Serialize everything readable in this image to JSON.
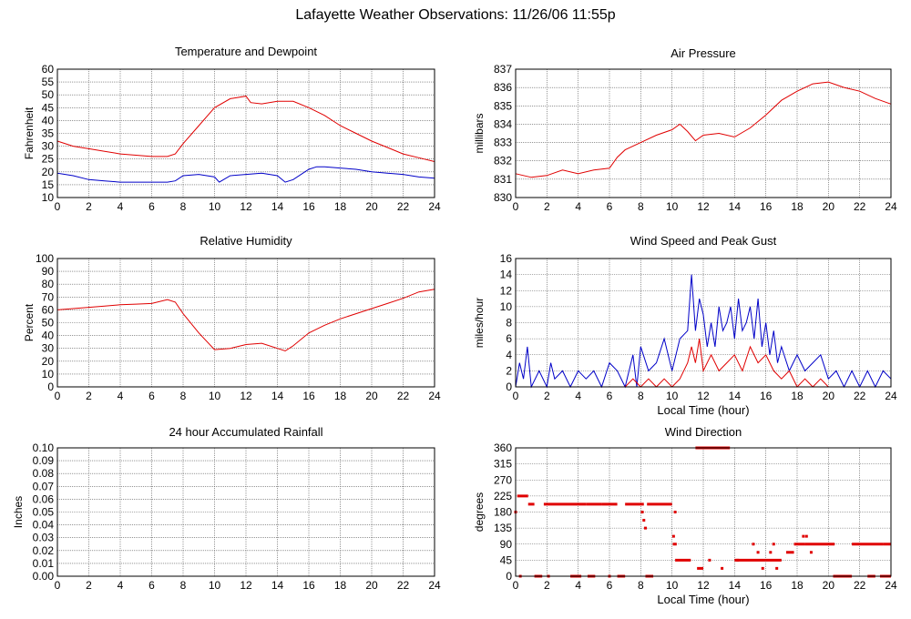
{
  "page_title": "Lafayette Weather Observations: 11/26/06 11:55p",
  "colors": {
    "red": "#e00000",
    "blue": "#0000c8",
    "grid": "#555555"
  },
  "chart_data": [
    {
      "id": "temp",
      "type": "line",
      "title": "Temperature and Dewpoint",
      "xlabel": "",
      "ylabel": "Fahrenheit",
      "xlim": [
        0,
        24
      ],
      "ylim": [
        10,
        60
      ],
      "xticks": [
        0,
        2,
        4,
        6,
        8,
        10,
        12,
        14,
        16,
        18,
        20,
        22,
        24
      ],
      "yticks": [
        10,
        15,
        20,
        25,
        30,
        35,
        40,
        45,
        50,
        55,
        60
      ],
      "grid": true,
      "series": [
        {
          "color": "#e00000",
          "x": [
            0,
            1,
            2,
            3,
            4,
            5,
            6,
            7,
            7.5,
            8,
            9,
            10,
            11,
            12,
            12.3,
            13,
            14,
            15,
            16,
            17,
            18,
            19,
            20,
            21,
            22,
            23,
            24
          ],
          "y": [
            32,
            30,
            29,
            28,
            27,
            26.5,
            26,
            26,
            27,
            31,
            38,
            45,
            48.5,
            49.5,
            47,
            46.5,
            47.5,
            47.5,
            45,
            42,
            38,
            35,
            32,
            29.5,
            27,
            25.5,
            24
          ]
        },
        {
          "color": "#0000c8",
          "x": [
            0,
            1,
            2,
            3,
            4,
            5,
            6,
            7,
            7.5,
            8,
            9,
            10,
            10.3,
            11,
            12,
            13,
            14,
            14.5,
            15,
            16,
            16.5,
            17,
            18,
            19,
            20,
            21,
            22,
            23,
            24
          ],
          "y": [
            19.5,
            18.5,
            17,
            16.5,
            16,
            16,
            16,
            16,
            16.5,
            18.5,
            19,
            18,
            16,
            18.5,
            19,
            19.5,
            18.5,
            16,
            17,
            21,
            22,
            22,
            21.5,
            21,
            20,
            19.5,
            19,
            18,
            17.5
          ]
        }
      ]
    },
    {
      "id": "pressure",
      "type": "line",
      "title": "Air Pressure",
      "xlabel": "",
      "ylabel": "millibars",
      "xlim": [
        0,
        24
      ],
      "ylim": [
        830,
        837
      ],
      "xticks": [
        0,
        2,
        4,
        6,
        8,
        10,
        12,
        14,
        16,
        18,
        20,
        22,
        24
      ],
      "yticks": [
        830,
        831,
        832,
        833,
        834,
        835,
        836,
        837
      ],
      "grid": true,
      "series": [
        {
          "color": "#e00000",
          "x": [
            0,
            1,
            2,
            3,
            4,
            5,
            6,
            6.5,
            7,
            8,
            9,
            10,
            10.5,
            11,
            11.5,
            12,
            13,
            14,
            15,
            16,
            17,
            18,
            19,
            20,
            21,
            22,
            23,
            24
          ],
          "y": [
            831.3,
            831.1,
            831.2,
            831.5,
            831.3,
            831.5,
            831.6,
            832.2,
            832.6,
            833.0,
            833.4,
            833.7,
            834.0,
            833.6,
            833.1,
            833.4,
            833.5,
            833.3,
            833.8,
            834.5,
            835.3,
            835.8,
            836.2,
            836.3,
            836.0,
            835.8,
            835.4,
            835.1
          ]
        }
      ]
    },
    {
      "id": "humidity",
      "type": "line",
      "title": "Relative Humidity",
      "xlabel": "",
      "ylabel": "Percent",
      "xlim": [
        0,
        24
      ],
      "ylim": [
        0,
        100
      ],
      "xticks": [
        0,
        2,
        4,
        6,
        8,
        10,
        12,
        14,
        16,
        18,
        20,
        22,
        24
      ],
      "yticks": [
        0,
        10,
        20,
        30,
        40,
        50,
        60,
        70,
        80,
        90,
        100
      ],
      "grid": true,
      "series": [
        {
          "color": "#e00000",
          "x": [
            0,
            1,
            2,
            3,
            4,
            5,
            6,
            7,
            7.5,
            8,
            9,
            10,
            11,
            12,
            13,
            14,
            14.5,
            15,
            16,
            17,
            18,
            19,
            20,
            21,
            22,
            23,
            24
          ],
          "y": [
            60,
            61,
            62,
            63,
            64,
            64.5,
            65,
            68,
            66,
            57,
            42,
            29,
            30,
            33,
            34,
            30,
            28,
            32,
            42,
            48,
            53,
            57,
            61,
            65,
            69,
            74,
            76
          ]
        }
      ]
    },
    {
      "id": "wind",
      "type": "line",
      "title": "Wind Speed and Peak Gust",
      "xlabel": "Local Time (hour)",
      "ylabel": "miles/hour",
      "xlim": [
        0,
        24
      ],
      "ylim": [
        0,
        16
      ],
      "xticks": [
        0,
        2,
        4,
        6,
        8,
        10,
        12,
        14,
        16,
        18,
        20,
        22,
        24
      ],
      "yticks": [
        0,
        2,
        4,
        6,
        8,
        10,
        12,
        14,
        16
      ],
      "grid": true,
      "series": [
        {
          "color": "#0000c8",
          "x": [
            0,
            0.25,
            0.5,
            0.75,
            1,
            1.5,
            2,
            2.25,
            2.5,
            3,
            3.5,
            4,
            4.5,
            5,
            5.5,
            6,
            6.5,
            7,
            7.5,
            7.75,
            8,
            8.5,
            9,
            9.5,
            10,
            10.5,
            11,
            11.25,
            11.5,
            11.75,
            12,
            12.25,
            12.5,
            12.75,
            13,
            13.25,
            13.5,
            13.75,
            14,
            14.25,
            14.5,
            14.75,
            15,
            15.25,
            15.5,
            15.75,
            16,
            16.25,
            16.5,
            16.75,
            17,
            17.5,
            18,
            18.5,
            19,
            19.5,
            20,
            20.5,
            21,
            21.5,
            22,
            22.5,
            23,
            23.5,
            24
          ],
          "y": [
            0,
            3,
            1,
            5,
            0,
            2,
            0,
            3,
            1,
            2,
            0,
            2,
            1,
            2,
            0,
            3,
            2,
            0,
            4,
            0,
            5,
            2,
            3,
            6,
            2,
            6,
            7,
            14,
            7,
            11,
            9,
            5,
            8,
            5,
            10,
            7,
            8,
            10,
            6,
            11,
            7,
            8,
            10,
            6,
            11,
            5,
            8,
            4,
            7,
            3,
            5,
            2,
            4,
            2,
            3,
            4,
            1,
            2,
            0,
            2,
            0,
            2,
            0,
            2,
            1
          ]
        },
        {
          "color": "#e00000",
          "x": [
            0,
            1,
            2,
            3,
            4,
            5,
            6,
            7,
            7.5,
            8,
            8.5,
            9,
            9.5,
            10,
            10.5,
            11,
            11.25,
            11.5,
            11.75,
            12,
            12.5,
            13,
            13.5,
            14,
            14.5,
            15,
            15.5,
            16,
            16.5,
            17,
            17.5,
            18,
            18.5,
            19,
            19.5,
            20,
            21,
            22,
            23,
            24
          ],
          "y": [
            0,
            0,
            0,
            0,
            0,
            0,
            0,
            0,
            1,
            0,
            1,
            0,
            1,
            0,
            1,
            3,
            5,
            3,
            6,
            2,
            4,
            2,
            3,
            4,
            2,
            5,
            3,
            4,
            2,
            1,
            2,
            0,
            1,
            0,
            1,
            0,
            0,
            0,
            0,
            0
          ]
        }
      ]
    },
    {
      "id": "rain",
      "type": "line",
      "title": "24 hour Accumulated Rainfall",
      "xlabel": "",
      "ylabel": "Inches",
      "xlim": [
        0,
        24
      ],
      "ylim": [
        0,
        0.1
      ],
      "xticks": [
        0,
        2,
        4,
        6,
        8,
        10,
        12,
        14,
        16,
        18,
        20,
        22,
        24
      ],
      "yticks": [
        "0.00",
        "0.01",
        "0.02",
        "0.03",
        "0.04",
        "0.05",
        "0.06",
        "0.07",
        "0.08",
        "0.09",
        "0.10"
      ],
      "grid": true,
      "series": [
        {
          "color": "#e00000",
          "x": [
            0,
            24
          ],
          "y": [
            0,
            0
          ]
        }
      ]
    },
    {
      "id": "direction",
      "type": "scatter",
      "title": "Wind Direction",
      "xlabel": "Local Time (hour)",
      "ylabel": "degrees",
      "xlim": [
        0,
        24
      ],
      "ylim": [
        0,
        360
      ],
      "xticks": [
        0,
        2,
        4,
        6,
        8,
        10,
        12,
        14,
        16,
        18,
        20,
        22,
        24
      ],
      "yticks": [
        0,
        45,
        90,
        135,
        180,
        225,
        270,
        315,
        360
      ],
      "grid": true,
      "series": [
        {
          "color": "#e00000",
          "segments": [
            [
              0.1,
              0.8,
              225
            ],
            [
              0.8,
              1.2,
              202
            ],
            [
              1.2,
              1.7,
              0
            ],
            [
              1.8,
              4.5,
              202
            ],
            [
              4.5,
              5.5,
              202
            ],
            [
              5.5,
              6.5,
              202
            ],
            [
              6.5,
              7.0,
              0
            ],
            [
              7.0,
              8.2,
              202
            ],
            [
              8.4,
              10.0,
              202
            ],
            [
              10.05,
              10.3,
              90
            ],
            [
              10.2,
              11.2,
              45
            ],
            [
              11.5,
              13.7,
              360
            ],
            [
              11.6,
              12.0,
              22
            ],
            [
              14.0,
              16.0,
              45
            ],
            [
              16.0,
              17.0,
              45
            ],
            [
              17.3,
              17.8,
              67
            ],
            [
              17.8,
              18.5,
              90
            ],
            [
              18.5,
              20.4,
              90
            ],
            [
              20.3,
              21.5,
              0
            ],
            [
              21.5,
              22.0,
              90
            ],
            [
              22.0,
              23.5,
              90
            ],
            [
              23.5,
              24,
              90
            ],
            [
              22.5,
              23.0,
              0
            ],
            [
              23.3,
              24,
              0
            ],
            [
              3.5,
              4.2,
              0
            ],
            [
              4.6,
              5.0,
              0
            ],
            [
              8.3,
              8.8,
              0
            ]
          ],
          "points": [
            [
              0,
              180
            ],
            [
              0.3,
              0
            ],
            [
              2.1,
              0
            ],
            [
              6.0,
              0
            ],
            [
              8.1,
              180
            ],
            [
              8.2,
              157
            ],
            [
              8.3,
              135
            ],
            [
              10.1,
              112
            ],
            [
              10.2,
              180
            ],
            [
              12.4,
              45
            ],
            [
              13.2,
              22
            ],
            [
              14.2,
              45
            ],
            [
              15.2,
              90
            ],
            [
              15.5,
              67
            ],
            [
              15.8,
              22
            ],
            [
              16.3,
              67
            ],
            [
              16.5,
              90
            ],
            [
              16.7,
              22
            ],
            [
              18.9,
              67
            ],
            [
              18.4,
              112
            ],
            [
              18.6,
              112
            ],
            [
              5.0,
              0
            ],
            [
              4.0,
              0
            ]
          ]
        }
      ]
    }
  ]
}
